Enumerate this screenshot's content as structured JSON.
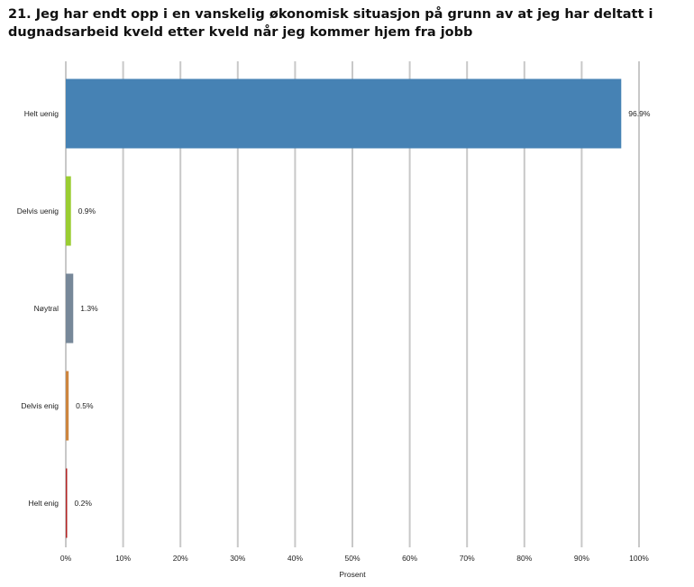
{
  "chart_data": {
    "type": "bar",
    "orientation": "horizontal",
    "title": "21. Jeg har endt opp i en vanskelig økonomisk situasjon på grunn av at jeg har deltatt i dugnadsarbeid kveld etter kveld når jeg kommer hjem fra jobb",
    "categories": [
      "Helt uenig",
      "Delvis uenig",
      "Nøytral",
      "Delvis enig",
      "Helt enig"
    ],
    "values": [
      96.9,
      0.9,
      1.3,
      0.5,
      0.2
    ],
    "value_labels": [
      "96.9%",
      "0.9%",
      "1.3%",
      "0.5%",
      "0.2%"
    ],
    "bar_colors": [
      "#4682b4",
      "#9acd32",
      "#778899",
      "#cd853f",
      "#b22222"
    ],
    "xlabel": "Prosent",
    "ylabel": "",
    "xlim": [
      0,
      100
    ],
    "x_ticks": [
      0,
      10,
      20,
      30,
      40,
      50,
      60,
      70,
      80,
      90,
      100
    ],
    "x_tick_labels": [
      "0%",
      "10%",
      "20%",
      "30%",
      "40%",
      "50%",
      "60%",
      "70%",
      "80%",
      "90%",
      "100%"
    ],
    "grid": true,
    "grid_color": "#c8c8c8"
  }
}
